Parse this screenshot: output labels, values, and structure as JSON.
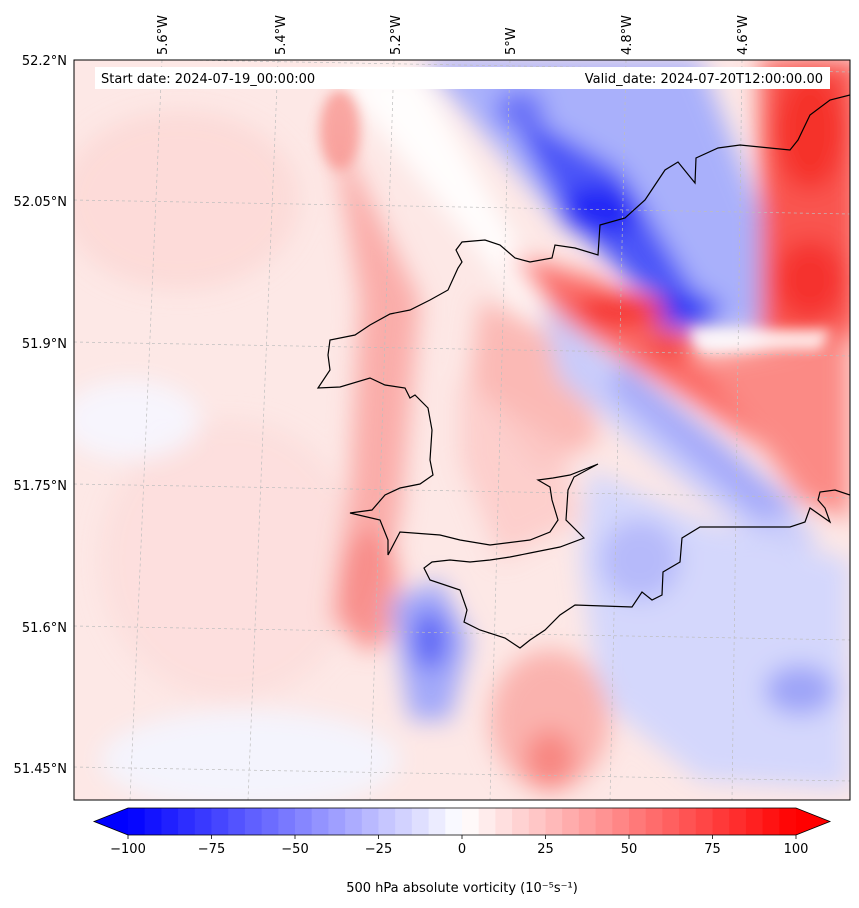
{
  "header": {
    "start_date": "Start date: 2024-07-19_00:00:00",
    "valid_date": "Valid_date: 2024-07-20T12:00:00.00"
  },
  "map": {
    "lon_labels": [
      "5.6°W",
      "5.4°W",
      "5.2°W",
      "5°W",
      "4.8°W",
      "4.6°W"
    ],
    "lat_labels": [
      "52.2°N",
      "52.05°N",
      "51.9°N",
      "51.75°N",
      "51.6°N",
      "51.45°N"
    ],
    "field": "500 hPa absolute vorticity",
    "colormap": "bwr",
    "gridlines": true,
    "coastline_color": "#000000"
  },
  "colorbar": {
    "ticks": [
      "−100",
      "−75",
      "−50",
      "−25",
      "0",
      "25",
      "50",
      "75",
      "100"
    ],
    "tick_values": [
      -100,
      -75,
      -50,
      -25,
      0,
      25,
      50,
      75,
      100
    ],
    "range": [
      -100,
      100
    ],
    "extend": "both",
    "label": "500 hPa absolute vorticity (10⁻⁵s⁻¹)"
  }
}
